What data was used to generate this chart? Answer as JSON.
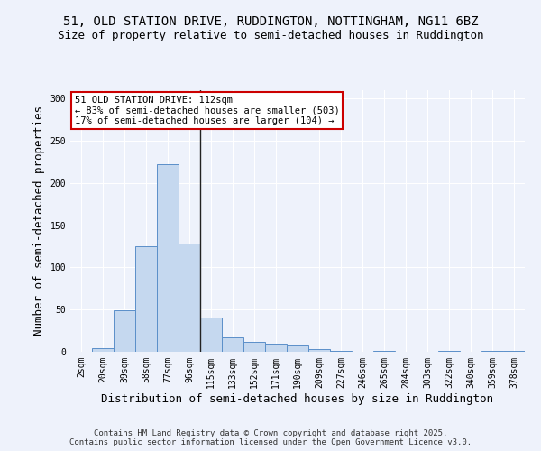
{
  "title1": "51, OLD STATION DRIVE, RUDDINGTON, NOTTINGHAM, NG11 6BZ",
  "title2": "Size of property relative to semi-detached houses in Ruddington",
  "xlabel": "Distribution of semi-detached houses by size in Ruddington",
  "ylabel": "Number of semi-detached properties",
  "categories": [
    "2sqm",
    "20sqm",
    "39sqm",
    "58sqm",
    "77sqm",
    "96sqm",
    "115sqm",
    "133sqm",
    "152sqm",
    "171sqm",
    "190sqm",
    "209sqm",
    "227sqm",
    "246sqm",
    "265sqm",
    "284sqm",
    "303sqm",
    "322sqm",
    "340sqm",
    "359sqm",
    "378sqm"
  ],
  "values": [
    0,
    4,
    49,
    125,
    222,
    128,
    41,
    17,
    12,
    10,
    8,
    3,
    1,
    0,
    1,
    0,
    0,
    1,
    0,
    1,
    1
  ],
  "bar_color": "#c5d8ef",
  "bar_edge_color": "#5b8fc9",
  "vline_x": 5.5,
  "annotation_text": "51 OLD STATION DRIVE: 112sqm\n← 83% of semi-detached houses are smaller (503)\n17% of semi-detached houses are larger (104) →",
  "annotation_box_color": "#ffffff",
  "annotation_border_color": "#cc0000",
  "ylim": [
    0,
    310
  ],
  "yticks": [
    0,
    50,
    100,
    150,
    200,
    250,
    300
  ],
  "footer": "Contains HM Land Registry data © Crown copyright and database right 2025.\nContains public sector information licensed under the Open Government Licence v3.0.",
  "bg_color": "#eef2fb",
  "plot_bg_color": "#eef2fb",
  "grid_color": "#ffffff",
  "title1_fontsize": 10,
  "title2_fontsize": 9,
  "axis_label_fontsize": 9,
  "tick_fontsize": 7,
  "annotation_fontsize": 7.5,
  "footer_fontsize": 6.5
}
